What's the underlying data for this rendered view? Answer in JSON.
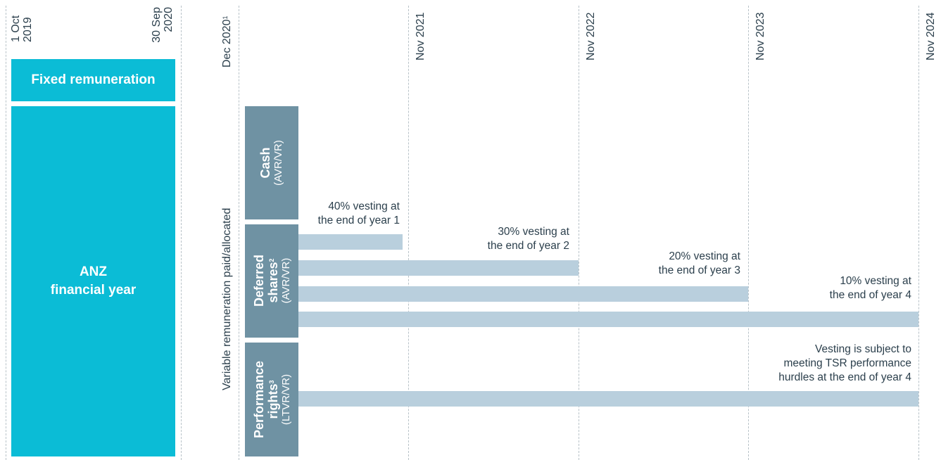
{
  "timeline": {
    "fy_start": [
      "1 Oct",
      "2019"
    ],
    "fy_end": [
      "30 Sep",
      "2020"
    ],
    "dec2020": "Dec 2020",
    "dec2020_sup": "1",
    "nov2021": "Nov 2021",
    "nov2022": "Nov 2022",
    "nov2023": "Nov 2023",
    "nov2024": "Nov 2024"
  },
  "boxes": {
    "fixed": "Fixed remuneration",
    "fy_line1": "ANZ",
    "fy_line2": "financial year"
  },
  "side_label": "Variable remuneration paid/allocated",
  "categories": {
    "cash_title": "Cash",
    "cash_sub": "(AVR/VR)",
    "deferred_title1": "Deferred",
    "deferred_title2": "shares",
    "deferred_sup": "2",
    "deferred_sub": "(AVR/VR)",
    "perf_title1": "Performance",
    "perf_title2": "rights",
    "perf_sup": "3",
    "perf_sub": "(LTVR/VR)"
  },
  "notes": {
    "v1": [
      "40% vesting at",
      "the end of year 1"
    ],
    "v2": [
      "30% vesting at",
      "the end of year 2"
    ],
    "v3": [
      "20% vesting at",
      "the end of year 3"
    ],
    "v4": [
      "10% vesting at",
      "the end of year 4"
    ],
    "perf": [
      "Vesting is subject to",
      "meeting TSR performance",
      "hurdles at the end of year 4"
    ]
  },
  "colors": {
    "teal": "#0bbcd6",
    "slate": "#6f92a3",
    "bar": "#b9cfdd"
  }
}
